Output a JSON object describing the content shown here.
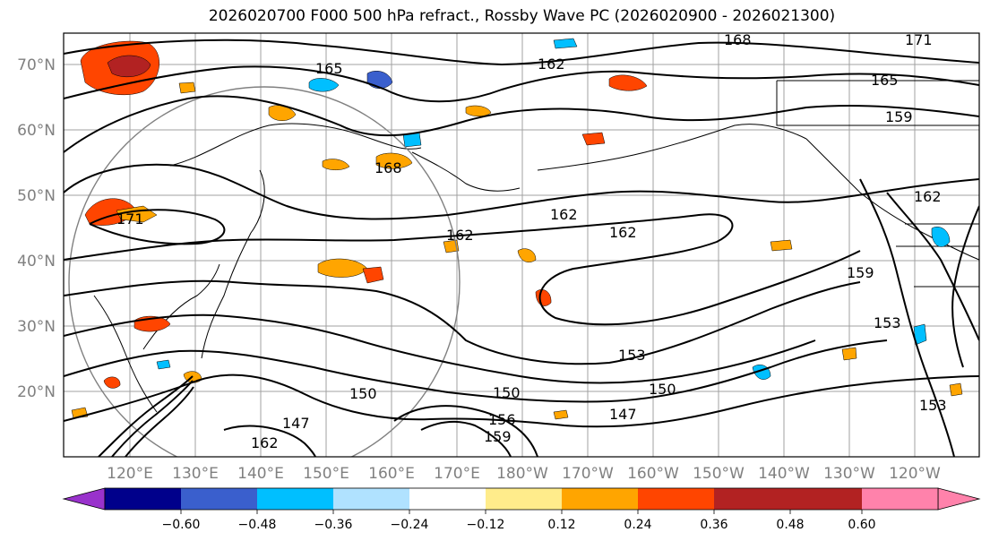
{
  "title": "2026020700 F000 500 hPa refract., Rossby Wave PC (2026020900 - 2026021300)",
  "lat_labels": [
    "70°N",
    "60°N",
    "50°N",
    "40°N",
    "30°N",
    "20°N"
  ],
  "lon_labels": [
    "120°E",
    "130°E",
    "140°E",
    "150°E",
    "160°E",
    "170°E",
    "180°W",
    "170°W",
    "160°W",
    "150°W",
    "140°W",
    "130°W",
    "120°W"
  ],
  "contour_labels": [
    "168",
    "162",
    "165",
    "165",
    "159",
    "171",
    "168",
    "162",
    "162",
    "162",
    "153",
    "150",
    "150",
    "147",
    "150",
    "153",
    "153",
    "147",
    "159",
    "156",
    "162",
    "171",
    "159",
    "162"
  ],
  "colorbar": {
    "ticks": [
      "−0.60",
      "−0.48",
      "−0.36",
      "−0.24",
      "−0.12",
      "0.12",
      "0.24",
      "0.36",
      "0.48",
      "0.60"
    ],
    "colors": [
      "#9932cc",
      "#00008b",
      "#3a5fcd",
      "#00bfff",
      "#b0e2ff",
      "#ffffff",
      "#ffec8b",
      "#ffa500",
      "#ff4500",
      "#b22222",
      "#ff82ab"
    ]
  }
}
